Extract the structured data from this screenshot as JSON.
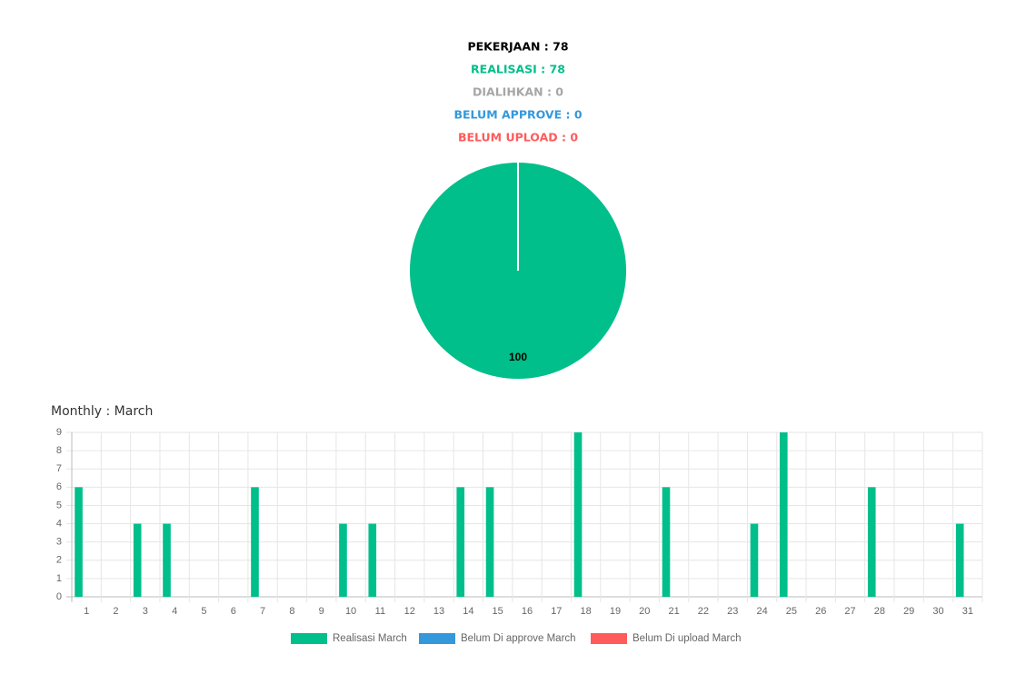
{
  "summary": [
    {
      "text": "PEKERJAAN : 78",
      "color": "#000000"
    },
    {
      "text": "REALISASI : 78",
      "color": "#00bf8a"
    },
    {
      "text": "DIALIHKAN : 0",
      "color": "#a6a6a6"
    },
    {
      "text": "BELUM APPROVE : 0",
      "color": "#3498db"
    },
    {
      "text": "BELUM UPLOAD : 0",
      "color": "#ff5b5b"
    }
  ],
  "chart_data": [
    {
      "type": "pie",
      "values": [
        100
      ],
      "colors": [
        "#00bf8a"
      ],
      "value_labels": [
        "100"
      ]
    },
    {
      "type": "bar",
      "title": "Monthly : March",
      "categories": [
        "1",
        "2",
        "3",
        "4",
        "5",
        "6",
        "7",
        "8",
        "9",
        "10",
        "11",
        "12",
        "13",
        "14",
        "15",
        "16",
        "17",
        "18",
        "19",
        "20",
        "21",
        "22",
        "23",
        "24",
        "25",
        "26",
        "27",
        "28",
        "29",
        "30",
        "31"
      ],
      "series": [
        {
          "name": "Realisasi March",
          "color": "#00bf8a",
          "values": [
            6,
            0,
            4,
            4,
            0,
            0,
            6,
            0,
            0,
            4,
            4,
            0,
            0,
            6,
            6,
            0,
            0,
            9,
            0,
            0,
            6,
            0,
            0,
            4,
            9,
            0,
            0,
            6,
            0,
            0,
            4
          ]
        },
        {
          "name": "Belum Di approve March",
          "color": "#3498db",
          "values": [
            0,
            0,
            0,
            0,
            0,
            0,
            0,
            0,
            0,
            0,
            0,
            0,
            0,
            0,
            0,
            0,
            0,
            0,
            0,
            0,
            0,
            0,
            0,
            0,
            0,
            0,
            0,
            0,
            0,
            0,
            0
          ]
        },
        {
          "name": "Belum Di upload March",
          "color": "#ff5b5b",
          "values": [
            0,
            0,
            0,
            0,
            0,
            0,
            0,
            0,
            0,
            0,
            0,
            0,
            0,
            0,
            0,
            0,
            0,
            0,
            0,
            0,
            0,
            0,
            0,
            0,
            0,
            0,
            0,
            0,
            0,
            0,
            0
          ]
        }
      ],
      "ylim": [
        0,
        9
      ],
      "yticks": [
        0,
        1,
        2,
        3,
        4,
        5,
        6,
        7,
        8,
        9
      ],
      "grid": true
    }
  ]
}
